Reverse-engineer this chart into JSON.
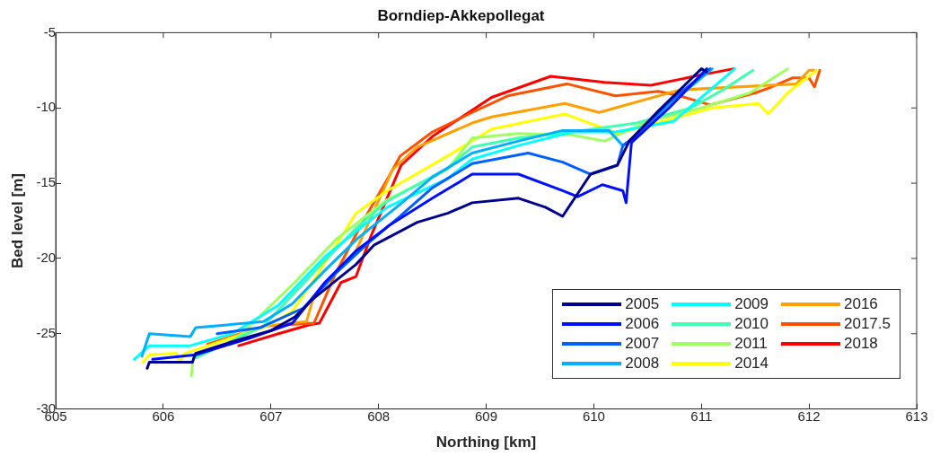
{
  "chart_data": {
    "type": "line",
    "title": "Borndiep-Akkepollegat",
    "xlabel": "Northing [km]",
    "ylabel": "Bed level [m]",
    "xlim": [
      605,
      613
    ],
    "xticks": [
      605,
      606,
      607,
      608,
      609,
      610,
      611,
      612,
      613
    ],
    "ylim": [
      -30,
      -5
    ],
    "yticks": [
      -30,
      -25,
      -20,
      -15,
      -10,
      -5
    ],
    "grid": false,
    "legend": "bottom right",
    "marker": "none",
    "line_style": "solid",
    "series": [
      {
        "name": "2005",
        "color": "#00008f",
        "x": [
          605.85,
          605.87,
          606.1,
          606.27,
          606.3,
          606.7,
          607.0,
          607.22,
          607.39,
          607.79,
          607.96,
          608.36,
          608.64,
          608.87,
          609.3,
          609.55,
          609.71,
          609.97,
          610.22,
          610.33,
          610.6,
          611.0,
          611.05
        ],
        "values": [
          -27.3,
          -26.9,
          -26.9,
          -26.9,
          -26.3,
          -25.4,
          -24.8,
          -23.9,
          -22.7,
          -20.4,
          -19.1,
          -17.6,
          -17.0,
          -16.3,
          -16.0,
          -16.6,
          -17.2,
          -14.4,
          -13.8,
          -12.2,
          -10.2,
          -7.4,
          -7.6
        ]
      },
      {
        "name": "2006",
        "color": "#0010ff",
        "x": [
          605.9,
          606.3,
          606.8,
          607.2,
          607.5,
          607.79,
          608.1,
          608.5,
          608.87,
          609.3,
          609.71,
          609.85,
          610.08,
          610.27,
          610.3,
          610.35,
          610.7,
          611.05
        ],
        "values": [
          -26.7,
          -26.4,
          -25.3,
          -24.3,
          -21.6,
          -19.5,
          -17.8,
          -16.0,
          -14.4,
          -14.4,
          -15.5,
          -15.9,
          -15.1,
          -15.5,
          -16.3,
          -12.3,
          -10.0,
          -7.4
        ]
      },
      {
        "name": "2007",
        "color": "#0060ff",
        "x": [
          606.5,
          606.9,
          607.3,
          607.6,
          607.9,
          608.2,
          608.5,
          608.87,
          609.39,
          609.71,
          609.97,
          610.22,
          610.27,
          610.4,
          610.7,
          611.08
        ],
        "values": [
          -25.0,
          -24.6,
          -23.3,
          -21.0,
          -19.0,
          -17.2,
          -15.3,
          -13.7,
          -13.0,
          -13.6,
          -14.4,
          -13.8,
          -12.5,
          -11.8,
          -9.6,
          -7.4
        ]
      },
      {
        "name": "2008",
        "color": "#00b0ff",
        "x": [
          605.8,
          605.87,
          606.25,
          606.3,
          606.93,
          607.2,
          607.5,
          607.8,
          608.2,
          608.5,
          608.87,
          609.3,
          609.71,
          610.14,
          610.27,
          610.4,
          610.7,
          611.1
        ],
        "values": [
          -26.5,
          -25.0,
          -25.2,
          -24.6,
          -24.2,
          -23.0,
          -20.8,
          -18.7,
          -16.4,
          -14.6,
          -13.0,
          -12.2,
          -11.5,
          -11.5,
          -12.5,
          -11.9,
          -9.8,
          -7.4
        ]
      },
      {
        "name": "2009",
        "color": "#00ffff",
        "x": [
          605.73,
          605.87,
          606.25,
          606.64,
          607.07,
          607.5,
          607.79,
          608.08,
          608.64,
          608.87,
          609.3,
          609.8,
          610.2,
          610.74,
          611.0,
          611.31
        ],
        "values": [
          -26.7,
          -25.8,
          -25.8,
          -25.0,
          -23.1,
          -19.9,
          -18.2,
          -16.6,
          -14.7,
          -13.4,
          -12.5,
          -11.6,
          -11.6,
          -10.9,
          -9.3,
          -7.4
        ]
      },
      {
        "name": "2010",
        "color": "#40ffb0",
        "x": [
          606.3,
          606.93,
          607.36,
          607.79,
          608.08,
          608.64,
          608.87,
          609.3,
          609.8,
          610.4,
          610.9,
          611.2,
          611.48
        ],
        "values": [
          -26.6,
          -24.5,
          -21.2,
          -18.0,
          -16.2,
          -14.0,
          -12.6,
          -12.0,
          -11.6,
          -11.0,
          -10.0,
          -8.8,
          -7.5
        ]
      },
      {
        "name": "2011",
        "color": "#a0ff60",
        "x": [
          606.26,
          606.28,
          606.64,
          607.22,
          607.61,
          608.08,
          608.64,
          608.87,
          609.3,
          609.8,
          610.1,
          610.5,
          611.0,
          611.45,
          611.8
        ],
        "values": [
          -27.8,
          -26.5,
          -25.6,
          -21.6,
          -18.7,
          -16.1,
          -14.1,
          -12.0,
          -11.7,
          -11.8,
          -12.2,
          -10.9,
          -10.0,
          -9.0,
          -7.4
        ]
      },
      {
        "name": "2014",
        "color": "#ffff00",
        "x": [
          605.81,
          605.87,
          606.12,
          606.15,
          606.2,
          606.93,
          607.2,
          607.42,
          607.79,
          608.08,
          608.64,
          609.05,
          609.73,
          610.22,
          611.1,
          611.53,
          611.62,
          611.8,
          612.07
        ],
        "values": [
          -26.9,
          -26.4,
          -26.3,
          -26.9,
          -26.3,
          -24.6,
          -23.5,
          -21.2,
          -17.0,
          -15.5,
          -13.2,
          -11.4,
          -10.4,
          -11.7,
          -10.0,
          -9.7,
          -10.4,
          -9.0,
          -7.5
        ]
      },
      {
        "name": "2016",
        "color": "#ffa000",
        "x": [
          606.41,
          606.93,
          607.33,
          607.39,
          607.79,
          608.13,
          608.36,
          608.87,
          609.05,
          609.73,
          610.05,
          610.6,
          610.8,
          611.88,
          612.0,
          612.05
        ],
        "values": [
          -25.8,
          -24.5,
          -24.2,
          -22.7,
          -19.5,
          -14.1,
          -12.6,
          -11.0,
          -10.6,
          -9.7,
          -10.3,
          -9.2,
          -8.8,
          -8.4,
          -7.5,
          -7.5
        ]
      },
      {
        "name": "2017.5",
        "color": "#ff5000",
        "x": [
          606.41,
          606.93,
          607.4,
          607.6,
          607.85,
          608.1,
          608.2,
          608.5,
          608.87,
          609.2,
          609.75,
          610.2,
          610.6,
          610.8,
          611.08,
          611.5,
          611.62,
          611.85,
          612.0,
          612.05,
          612.1
        ],
        "values": [
          -25.7,
          -24.5,
          -24.3,
          -21.0,
          -17.6,
          -14.5,
          -13.2,
          -11.6,
          -10.3,
          -9.2,
          -8.4,
          -9.2,
          -8.9,
          -9.2,
          -9.8,
          -9.0,
          -8.7,
          -8.0,
          -8.0,
          -8.6,
          -7.5
        ]
      },
      {
        "name": "2018",
        "color": "#ff0000",
        "x": [
          606.7,
          607.07,
          607.36,
          607.45,
          607.65,
          607.79,
          607.93,
          608.21,
          608.5,
          609.05,
          609.6,
          610.1,
          610.53,
          610.8,
          611.0,
          611.3
        ],
        "values": [
          -25.8,
          -25.0,
          -24.4,
          -24.3,
          -21.6,
          -21.2,
          -18.5,
          -13.8,
          -11.9,
          -9.3,
          -7.9,
          -8.3,
          -8.5,
          -8.1,
          -7.8,
          -7.4
        ]
      }
    ]
  }
}
